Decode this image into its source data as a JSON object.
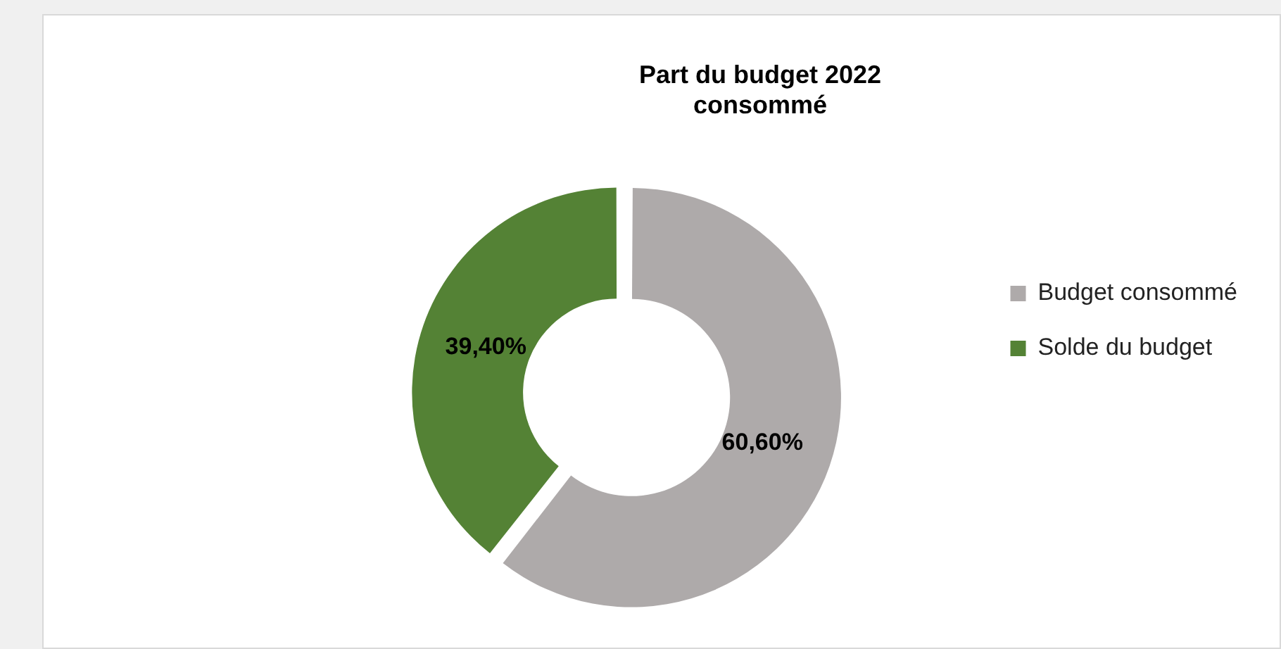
{
  "chart_data": {
    "type": "donut",
    "title": [
      "Part du budget 2022",
      "consommé"
    ],
    "categories": [
      "Budget consommé",
      "Solde du budget"
    ],
    "values": [
      60.6,
      39.4
    ],
    "colors": [
      "#aeaaaa",
      "#548235"
    ],
    "value_labels": [
      "60,60%",
      "39,40%"
    ],
    "legend": "right"
  }
}
